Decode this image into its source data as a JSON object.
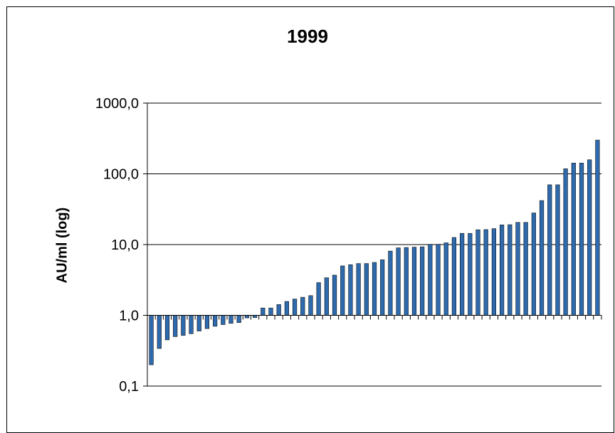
{
  "chart_data": {
    "type": "bar",
    "title": "1999",
    "xlabel": "",
    "ylabel": "AU/ml (log)",
    "yscale": "log",
    "ylim": [
      0.1,
      1000
    ],
    "yticks": [
      "0,1",
      "1,0",
      "10,0",
      "100,0",
      "1000,0"
    ],
    "baseline": 1.0,
    "grid": true,
    "legend": "none",
    "bar_color": "#2e6aae",
    "values": [
      0.2,
      0.34,
      0.45,
      0.5,
      0.52,
      0.55,
      0.6,
      0.65,
      0.7,
      0.74,
      0.77,
      0.79,
      0.92,
      0.93,
      1.27,
      1.27,
      1.42,
      1.57,
      1.7,
      1.8,
      1.9,
      2.9,
      3.4,
      3.7,
      5.0,
      5.2,
      5.4,
      5.4,
      5.6,
      6.1,
      8.1,
      9.0,
      9.1,
      9.2,
      9.3,
      10.1,
      10.1,
      10.6,
      12.6,
      14.4,
      14.4,
      16.2,
      16.3,
      16.8,
      19.0,
      19.1,
      20.6,
      20.6,
      28.0,
      41.9,
      70.0,
      70.0,
      118.0,
      142.0,
      142.0,
      158.0,
      300.0
    ]
  }
}
